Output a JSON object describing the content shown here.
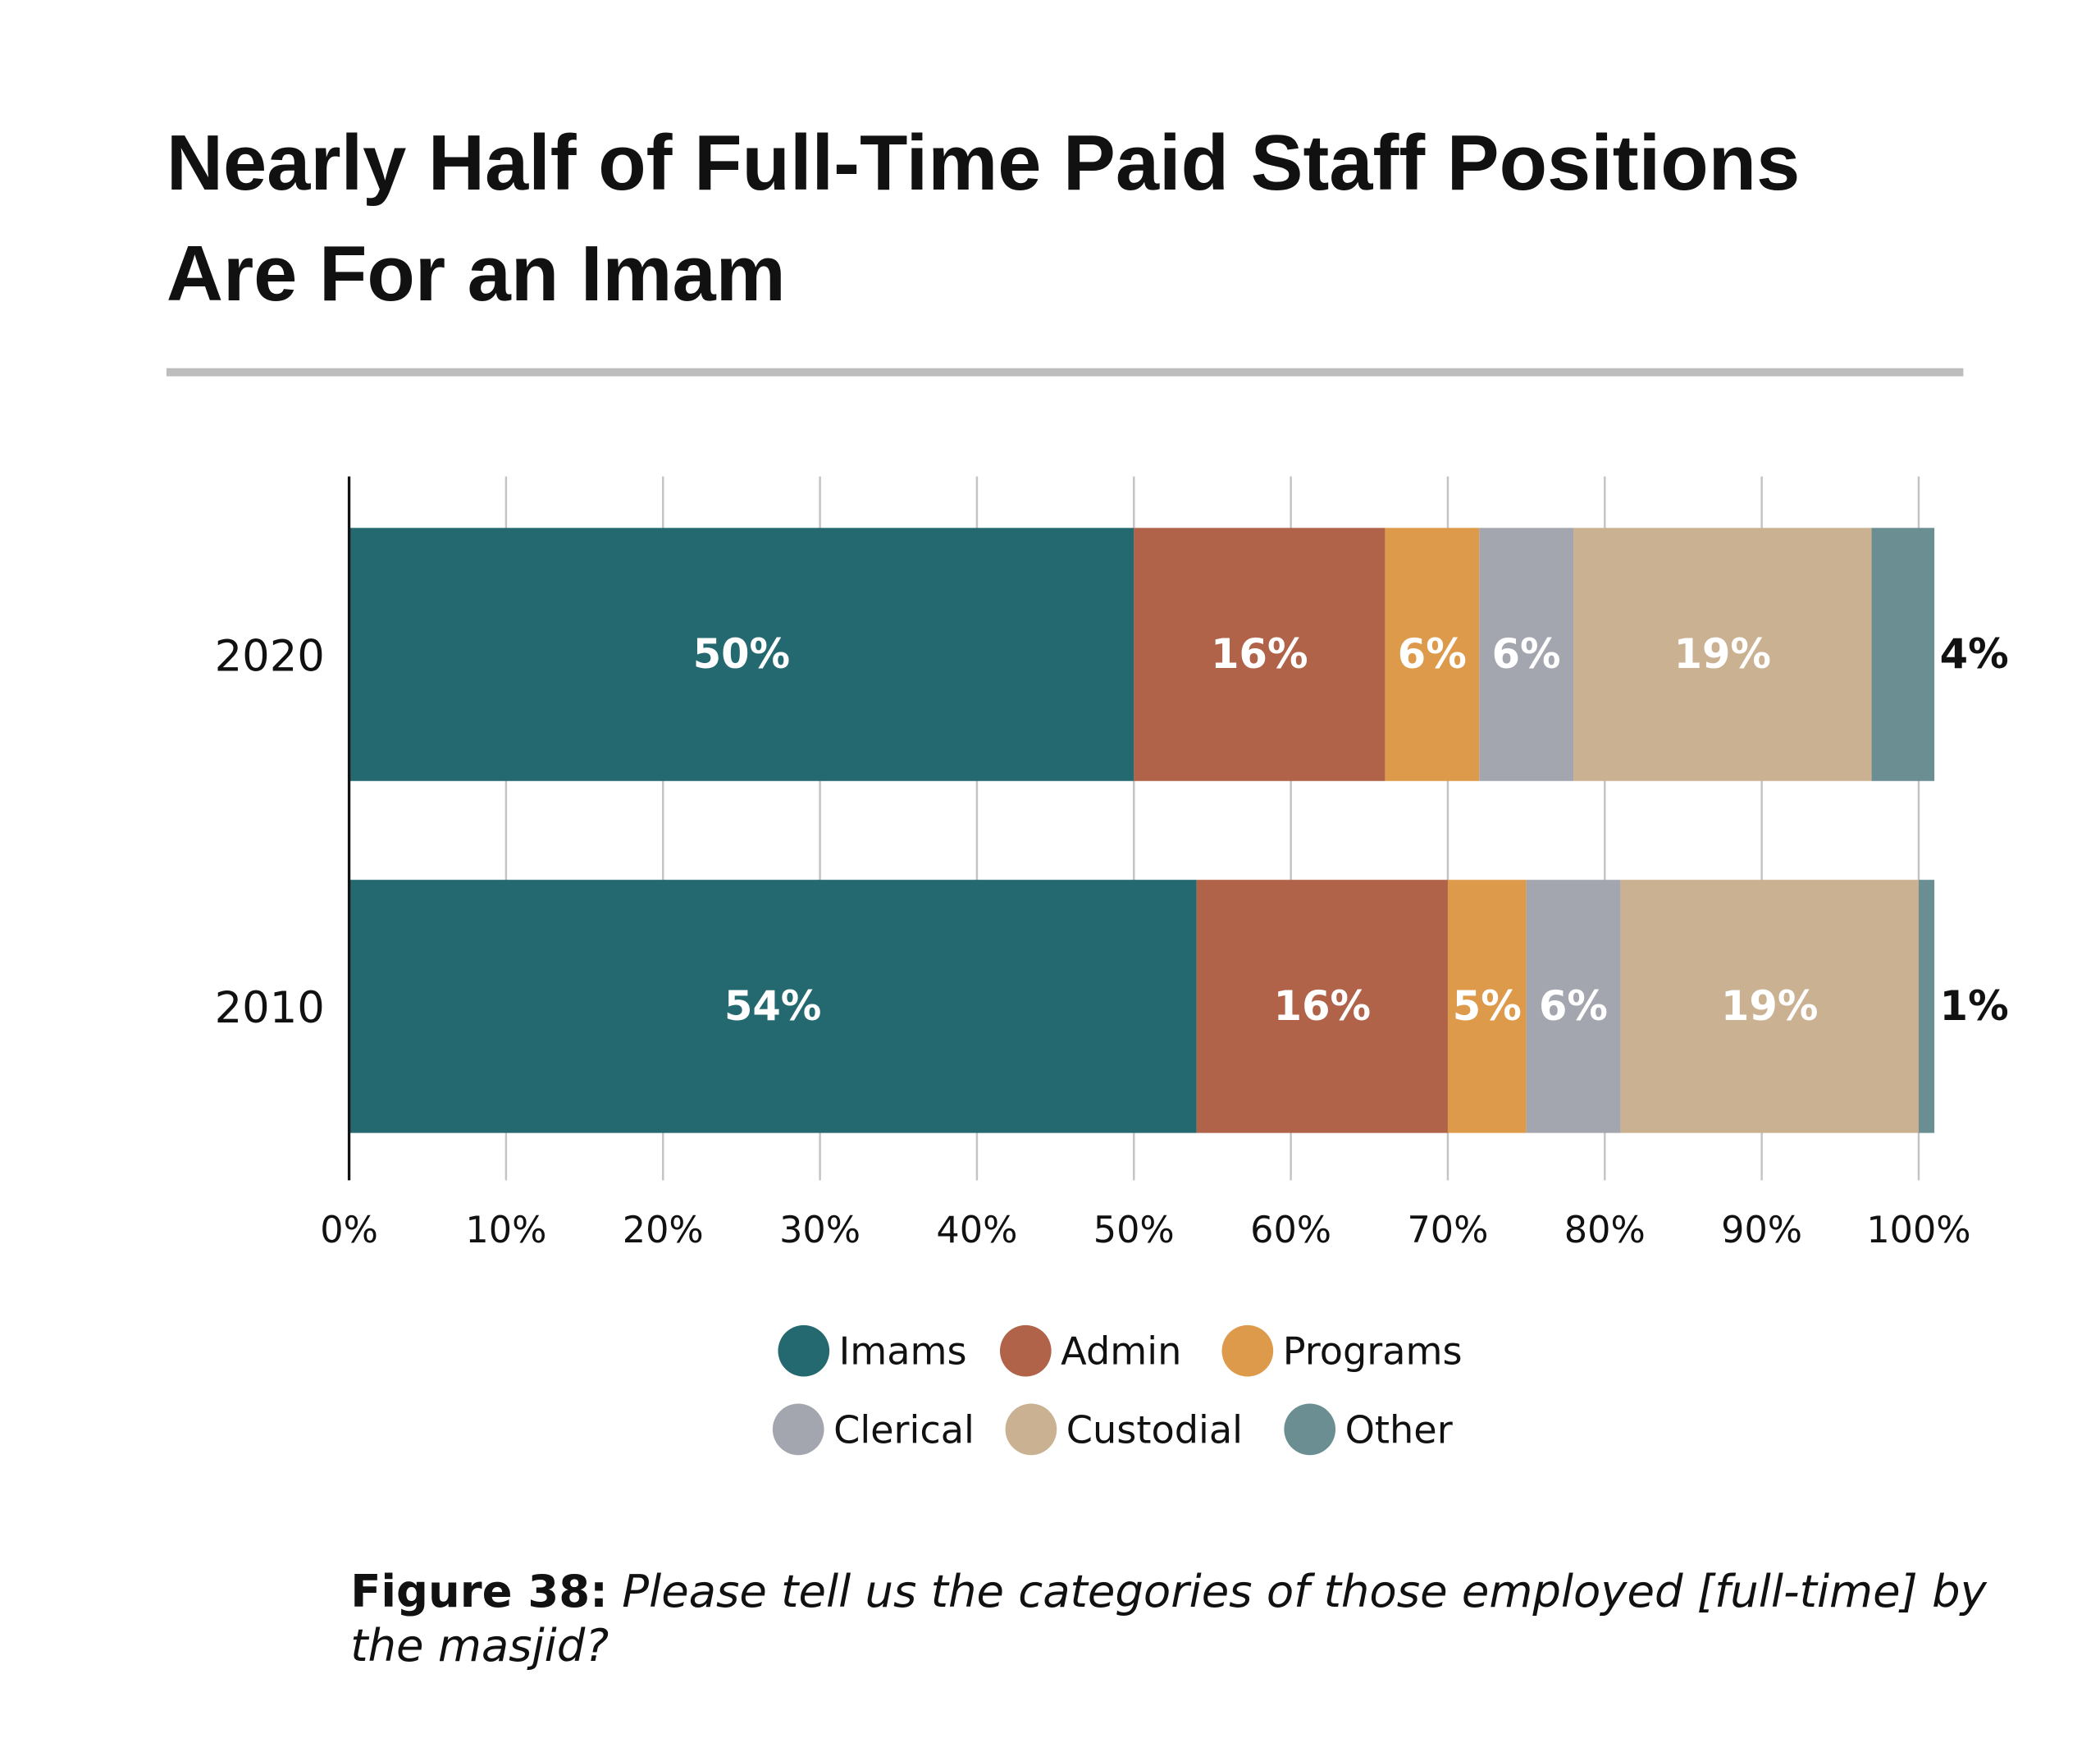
{
  "chart_data": {
    "type": "bar",
    "orientation": "horizontal",
    "stacked": true,
    "title": "Nearly Half of Full-Time Paid Staff Positions Are For an Imam",
    "title_lines": [
      "Nearly Half of Full-Time Paid Staff Positions",
      "Are For an Imam"
    ],
    "categories": [
      "2020",
      "2010"
    ],
    "series": [
      {
        "name": "Imams",
        "color": "#256970",
        "values": [
          50,
          54
        ],
        "labels": [
          "50%",
          "54%"
        ]
      },
      {
        "name": "Admin",
        "color": "#b06349",
        "values": [
          16,
          16
        ],
        "labels": [
          "16%",
          "16%"
        ]
      },
      {
        "name": "Programs",
        "color": "#dd9a4a",
        "values": [
          6,
          5
        ],
        "labels": [
          "6%",
          "5%"
        ]
      },
      {
        "name": "Clerical",
        "color": "#a3a6ae",
        "values": [
          6,
          6
        ],
        "labels": [
          "6%",
          "6%"
        ]
      },
      {
        "name": "Custodial",
        "color": "#cab192",
        "values": [
          19,
          19
        ],
        "labels": [
          "19%",
          "19%"
        ]
      },
      {
        "name": "Other",
        "color": "#6b8e92",
        "values": [
          4,
          1
        ],
        "labels": [
          "4%",
          "1%"
        ]
      }
    ],
    "xlim": [
      0,
      100
    ],
    "xticks": [
      "0%",
      "10%",
      "20%",
      "30%",
      "40%",
      "50%",
      "60%",
      "70%",
      "80%",
      "90%",
      "100%"
    ],
    "grid": true,
    "legend_placement": "bottom",
    "caption_bold": "Figure 38:",
    "caption_italic": "Please tell us the categories of those employed [full-time] by the masjid?",
    "caption_lines": [
      "Please tell us the categories of those employed [full-time] by",
      "the masjid?"
    ]
  }
}
